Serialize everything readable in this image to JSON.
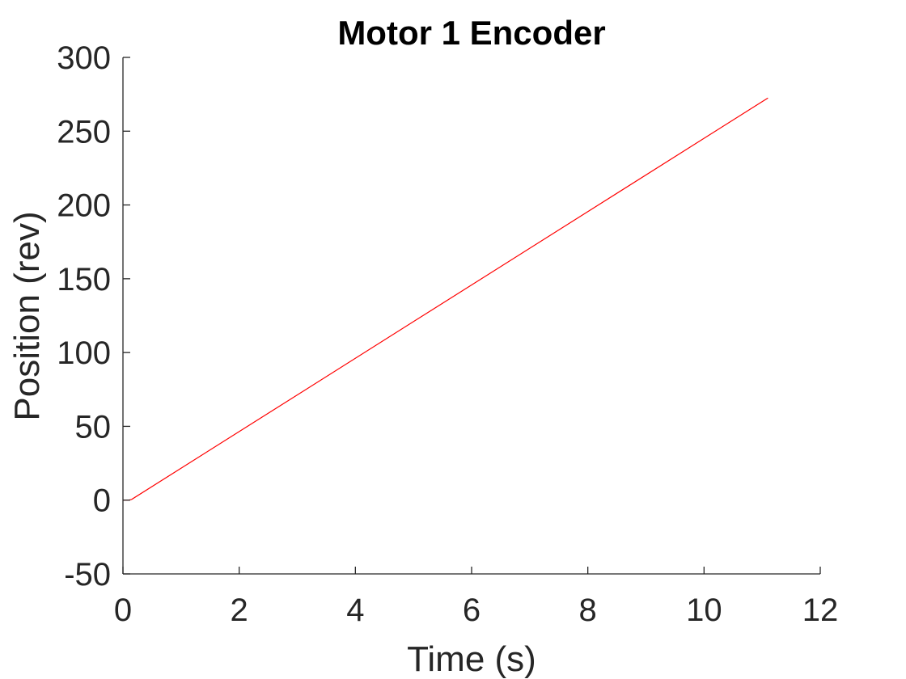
{
  "chart_data": {
    "type": "line",
    "title": "Motor 1 Encoder",
    "xlabel": "Time (s)",
    "ylabel": "Position (rev)",
    "xlim": [
      0,
      12
    ],
    "ylim": [
      -50,
      300
    ],
    "xticks": [
      0,
      2,
      4,
      6,
      8,
      10,
      12
    ],
    "yticks": [
      -50,
      0,
      50,
      100,
      150,
      200,
      250,
      300
    ],
    "xtick_labels": [
      "0",
      "2",
      "4",
      "6",
      "8",
      "10",
      "12"
    ],
    "ytick_labels": [
      "-50",
      "0",
      "50",
      "100",
      "150",
      "200",
      "250",
      "300"
    ],
    "grid": false,
    "legend": null,
    "series": [
      {
        "color": "#ff0000",
        "x": [
          0,
          0.1,
          0.15,
          11.1
        ],
        "y": [
          0,
          0,
          0.5,
          272.5
        ]
      }
    ]
  }
}
